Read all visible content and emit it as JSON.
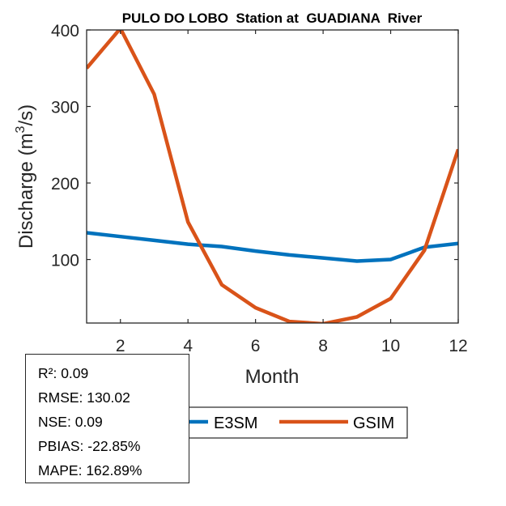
{
  "chart_data": {
    "type": "line",
    "title": "PULO DO LOBO  Station at  GUADIANA  River",
    "xlabel": "Month",
    "ylabel_prefix": "Discharge (m",
    "ylabel_sup": "3",
    "ylabel_suffix": "/s)",
    "xlim": [
      1,
      12
    ],
    "ylim": [
      17,
      400
    ],
    "xticks": [
      2,
      4,
      6,
      8,
      10,
      12
    ],
    "xtick_labels": [
      "2",
      "4",
      "6",
      "8",
      "10",
      "12"
    ],
    "yticks": [
      100,
      200,
      300,
      400
    ],
    "ytick_labels": [
      "100",
      "200",
      "300",
      "400"
    ],
    "grid": false,
    "x": [
      1,
      2,
      3,
      4,
      5,
      6,
      7,
      8,
      9,
      10,
      11,
      12
    ],
    "series": [
      {
        "name": "E3SM",
        "color": "#0072BD",
        "values": [
          135,
          130,
          125,
          120,
          117,
          111,
          106,
          102,
          98,
          100,
          116,
          121
        ]
      },
      {
        "name": "GSIM",
        "color": "#D95319",
        "values": [
          350,
          402,
          316,
          149,
          67,
          37,
          19,
          16,
          25,
          49,
          112,
          244
        ]
      }
    ],
    "legend": {
      "placement": "bottom-outside",
      "entries": [
        "E3SM",
        "GSIM"
      ]
    }
  },
  "stats": {
    "lines": [
      "R²: 0.09",
      "RMSE: 130.02",
      "NSE: 0.09",
      "PBIAS: -22.85%",
      "MAPE: 162.89%"
    ],
    "r2": 0.09,
    "rmse": 130.02,
    "nse": 0.09,
    "pbias_percent": -22.85,
    "mape_percent": 162.89
  }
}
